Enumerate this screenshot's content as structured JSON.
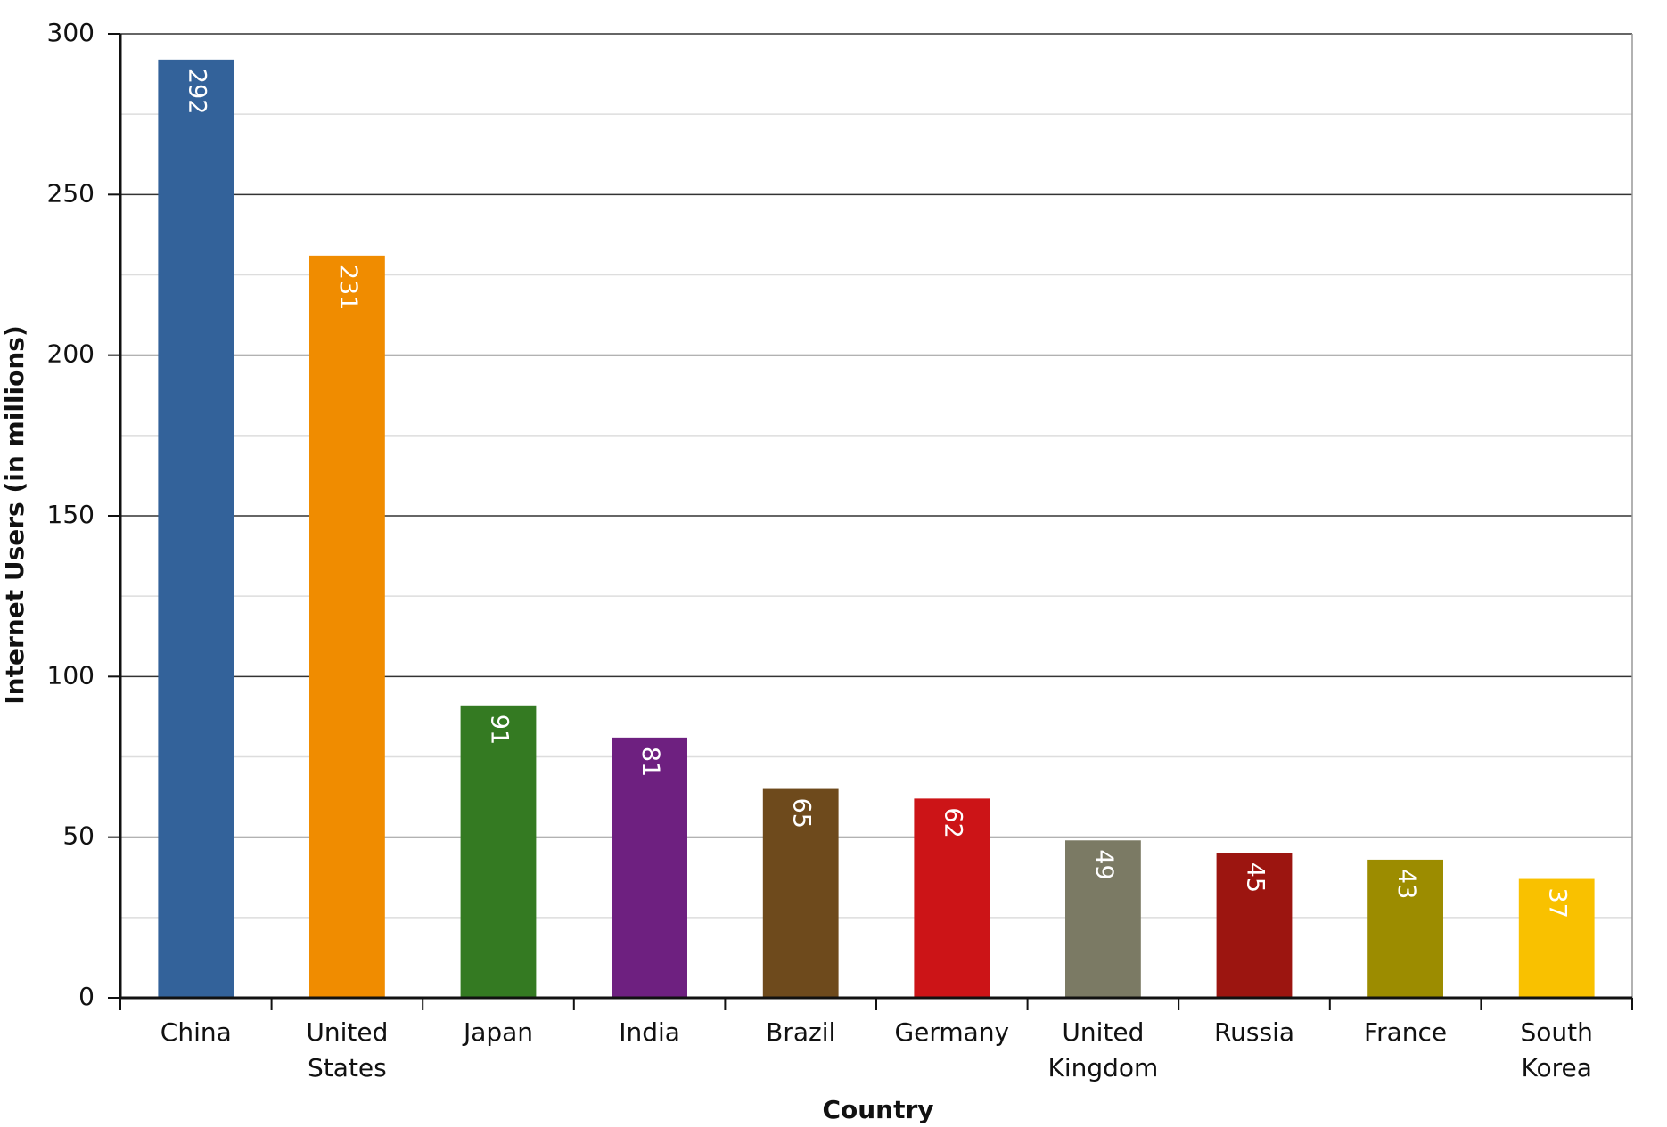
{
  "chart_data": {
    "type": "bar",
    "x_label": "Country",
    "y_label": "Internet Users (in millions)",
    "categories": [
      "China",
      "United States",
      "Japan",
      "India",
      "Brazil",
      "Germany",
      "United Kingdom",
      "Russia",
      "France",
      "South Korea"
    ],
    "values": [
      292,
      231,
      91,
      81,
      65,
      62,
      49,
      45,
      43,
      37
    ],
    "colors": [
      "#33629a",
      "#f08c00",
      "#347a22",
      "#6e2080",
      "#6e4a1c",
      "#cc1417",
      "#7b7a64",
      "#9c1510",
      "#9c8c00",
      "#f9c100"
    ],
    "ylim": [
      0,
      300
    ],
    "yticks": [
      0,
      50,
      100,
      150,
      200,
      250,
      300
    ],
    "minor_yticks": [
      25,
      75,
      125,
      175,
      225,
      275
    ],
    "grid": true
  }
}
